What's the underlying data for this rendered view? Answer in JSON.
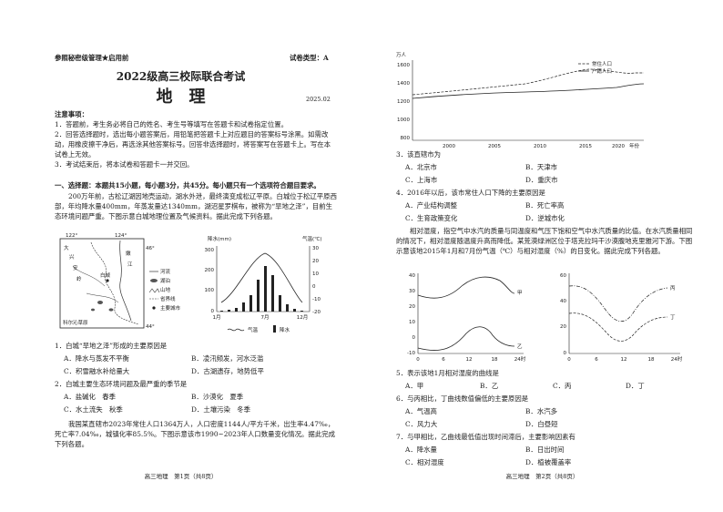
{
  "page1": {
    "header_left": "参照秘密级管理★启用前",
    "header_right": "试卷类型：A",
    "title": "2022级高三校际联合考试",
    "subject": "地　理",
    "date": "2025.02",
    "notice_title": "注意事项：",
    "notices": [
      "1．答题前，考生务必将自己的姓名、考生号等填写在答题卡和试卷指定位置。",
      "2．回答选择题时，选出每小题答案后，用铅笔把答题卡上对应题目的答案标号涂黑。如需改动，用橡皮擦干净后，再选涂其他答案标号。回答非选择题时，将答案写在答题卡上。写在本试卷上无效。",
      "3．考试结束后，将本试卷和答题卡一并交回。"
    ],
    "section": "一、选择题：本题共15小题，每小题3分，共45分。每小题只有一个选项符合题目要求。",
    "passage1": "200万年前，古松辽湖因地壳运动，湖水外泄，最终演变成松辽平原。白城位于松辽平原西部，年均降水量400mm，年蒸发量达1340mm，湖沼星罗棋布，被称为“旱地之泽”，目前生态环境问题严重。下图示意白城地理位置及气候资料。据此完成下列各题。",
    "map": {
      "lon_labels": [
        "122°",
        "124°"
      ],
      "lat_labels": [
        "46°",
        "44°"
      ],
      "place_labels": [
        "大",
        "兴",
        "安",
        "岭",
        "嫩",
        "江",
        "白城",
        "科尔沁草原"
      ],
      "legend": [
        "河流",
        "湖泊",
        "山地",
        "省界线",
        "主要城市"
      ]
    },
    "climate": {
      "y_label": "降水(mm)",
      "y2_label": "气温(℃)",
      "yticks": [
        "300",
        "200",
        "100",
        "0"
      ],
      "y2ticks": [
        "30",
        "20",
        "10",
        "0",
        "-10",
        "-20"
      ],
      "xticks": [
        "1月",
        "7月",
        "12月"
      ],
      "legend": [
        "气温",
        "降水"
      ]
    },
    "questions": [
      {
        "stem": "1．白城“旱地之泽”形成的主要原因是",
        "options": [
          "A．降水与蒸发不平衡",
          "B．凌汛频发，河水泛滥",
          "C．积雪融水补给量大",
          "D．古湖遗存，地势低平"
        ]
      },
      {
        "stem": "2．白城主要生态环境问题及最严重的季节是",
        "options": [
          "A．盐碱化　春季",
          "B．沙漠化　夏季",
          "C．水土流失　秋季",
          "D．土壤污染　冬季"
        ]
      }
    ],
    "passage2": "我国某直辖市2023年常住人口1364万人，人口密度1144人/平方千米，出生率4.47‰，死亡率7.04‰，城镇化率85.5%。下图示意该市1990~2023年人口数量变化情况。据此完成下列各题。",
    "footer": "高三地理　第1页（共8页）"
  },
  "page2": {
    "population_chart": {
      "y_label": "万人",
      "yticks": [
        "1600",
        "1400",
        "1200",
        "1000",
        "800"
      ],
      "xticks": [
        "2000",
        "2005",
        "2010",
        "2015",
        "2020"
      ],
      "x_label": "年份",
      "legend": [
        "常住人口",
        "户籍人口"
      ]
    },
    "questions_a": [
      {
        "stem": "3．该直辖市为",
        "options": [
          "A．北京市",
          "B．天津市",
          "C．上海市",
          "D．重庆市"
        ]
      },
      {
        "stem": "4．2016年以后，该市常住人口下降的主要原因是",
        "options": [
          "A．产业结构调整",
          "B．死亡率高",
          "C．生育政策变化",
          "D．逆城市化"
        ]
      }
    ],
    "passage3": "相对湿度，指空气中水汽的质量与同温度和气压下饱和空气中水汽质量的比值。在水汽质量相同的情况下，相对湿度随温度升高而降低。某荒漠绿洲区位于塔克拉玛干沙漠腹地克里雅河下游。下图示意该地2015年1月和7月份气温（℃）与相对湿度（%）的日变化。据此完成下列各题。",
    "temp_chart": {
      "yticks": [
        "40",
        "30",
        "20",
        "10",
        "0",
        "-10"
      ],
      "xticks": [
        "0",
        "6",
        "12",
        "18",
        "24时"
      ],
      "curve_labels": [
        "甲",
        "乙"
      ]
    },
    "humidity_chart": {
      "yticks": [
        "60",
        "40",
        "20",
        "0"
      ],
      "xticks": [
        "0",
        "6",
        "12",
        "18",
        "24时"
      ],
      "curve_labels": [
        "丙",
        "丁"
      ]
    },
    "questions_b": [
      {
        "stem": "5．表示该地1月相对湿度的曲线是",
        "options": [
          "A．甲",
          "B．乙",
          "C．丙",
          "D．丁"
        ]
      },
      {
        "stem": "6．与丙相比，丁曲线数值偏低的主要原因是",
        "options": [
          "A．气温高",
          "B．水汽多",
          "C．风力大",
          "D．白昼短"
        ]
      },
      {
        "stem": "7．与甲相比，乙曲线最低值出现时间滞后，主要影响因素有",
        "options": [
          "A．降水量",
          "B．日出时间",
          "C．相对湿度",
          "D．植被覆盖率"
        ]
      }
    ],
    "footer": "高三地理　第2页（共8页）"
  }
}
